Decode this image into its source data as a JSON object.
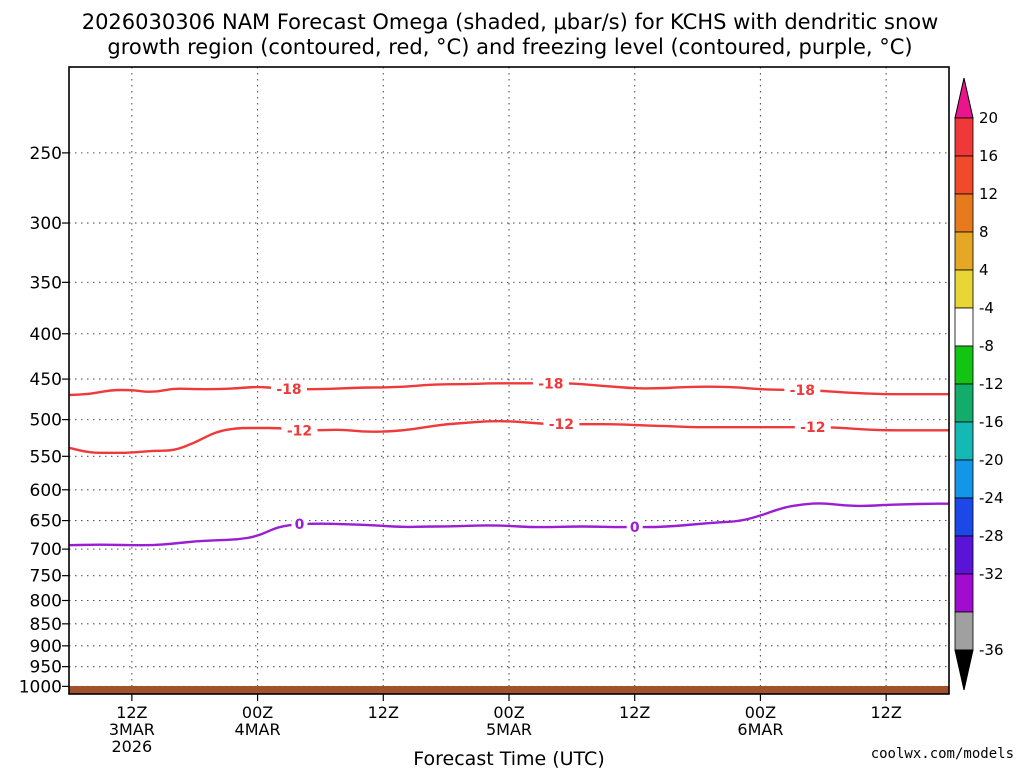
{
  "chart_data": {
    "type": "line",
    "title_line1": "2026030306 NAM Forecast Omega (shaded, μbar/s) for KCHS with dendritic snow",
    "title_line2": "growth region (contoured, red, °C) and freezing level (contoured, purple, °C)",
    "xlabel": "Forecast Time (UTC)",
    "credit": "coolwx.com/models",
    "x_range_hours": [
      6,
      90
    ],
    "y_range_hPa": [
      200,
      1020
    ],
    "y_ticks": [
      250,
      300,
      350,
      400,
      450,
      500,
      550,
      600,
      650,
      700,
      750,
      800,
      850,
      900,
      950,
      1000
    ],
    "x_ticks": [
      {
        "hour": 12,
        "line1": "12Z",
        "line2": "3MAR",
        "line3": "2026"
      },
      {
        "hour": 24,
        "line1": "00Z",
        "line2": "4MAR",
        "line3": ""
      },
      {
        "hour": 36,
        "line1": "12Z",
        "line2": "",
        "line3": ""
      },
      {
        "hour": 48,
        "line1": "00Z",
        "line2": "5MAR",
        "line3": ""
      },
      {
        "hour": 60,
        "line1": "12Z",
        "line2": "",
        "line3": ""
      },
      {
        "hour": 72,
        "line1": "00Z",
        "line2": "6MAR",
        "line3": ""
      },
      {
        "hour": 84,
        "line1": "12Z",
        "line2": "",
        "line3": ""
      }
    ],
    "x_hours": [
      6,
      8,
      10,
      12,
      14,
      16,
      18,
      20,
      22,
      24,
      26,
      28,
      30,
      32,
      34,
      36,
      38,
      40,
      42,
      44,
      46,
      48,
      50,
      52,
      54,
      56,
      58,
      60,
      62,
      64,
      66,
      68,
      70,
      72,
      74,
      76,
      78,
      80,
      82,
      84,
      86,
      88,
      90
    ],
    "series": [
      {
        "name": "-18 C isotherm",
        "color": "#ee3a3a",
        "label": "-18",
        "label_hours": [
          27,
          52,
          76
        ],
        "values_hPa": [
          469,
          468,
          463,
          463,
          466,
          461,
          462,
          462,
          461,
          459,
          461,
          462,
          462,
          461,
          460,
          460,
          459,
          457,
          456,
          456,
          455,
          455,
          455,
          455,
          455,
          457,
          459,
          461,
          461,
          460,
          459,
          459,
          460,
          462,
          463,
          463,
          464,
          466,
          467,
          468,
          468,
          468,
          468
        ]
      },
      {
        "name": "-12 C isotherm",
        "color": "#ee3a3a",
        "label": "-12",
        "label_hours": [
          28,
          53,
          77
        ],
        "values_hPa": [
          538,
          545,
          545,
          545,
          542,
          542,
          531,
          516,
          511,
          511,
          511,
          514,
          514,
          513,
          516,
          516,
          514,
          510,
          506,
          504,
          502,
          502,
          504,
          506,
          506,
          506,
          506,
          507,
          508,
          509,
          510,
          510,
          510,
          510,
          510,
          510,
          510,
          511,
          513,
          514,
          514,
          514,
          514
        ]
      },
      {
        "name": "0 C freezing level",
        "color": "#9a1ed2",
        "label": "0",
        "label_hours": [
          28,
          60
        ],
        "values_hPa": [
          693,
          692,
          692,
          693,
          693,
          690,
          686,
          684,
          683,
          677,
          660,
          656,
          655,
          656,
          657,
          659,
          661,
          660,
          660,
          659,
          658,
          659,
          661,
          661,
          660,
          660,
          661,
          661,
          661,
          659,
          656,
          653,
          651,
          642,
          629,
          623,
          621,
          625,
          626,
          624,
          623,
          622,
          622
        ]
      }
    ],
    "colorbar": {
      "label_ticks": [
        "20",
        "16",
        "12",
        "8",
        "4",
        "-4",
        "-8",
        "-12",
        "-16",
        "-20",
        "-24",
        "-28",
        "-32",
        "-36"
      ],
      "top_arrow_color": "#e8158d",
      "bottom_arrow_color": "#000000",
      "band_colors": [
        "#f03838",
        "#f04a2a",
        "#e87a1e",
        "#e4a824",
        "#e8d636",
        "#ffffff",
        "#14c414",
        "#12ad6a",
        "#14b8b4",
        "#1496e8",
        "#1c48e8",
        "#5a14d8",
        "#a00cd0",
        "#a0a0a0"
      ]
    },
    "ground_color": "#a0522d"
  }
}
